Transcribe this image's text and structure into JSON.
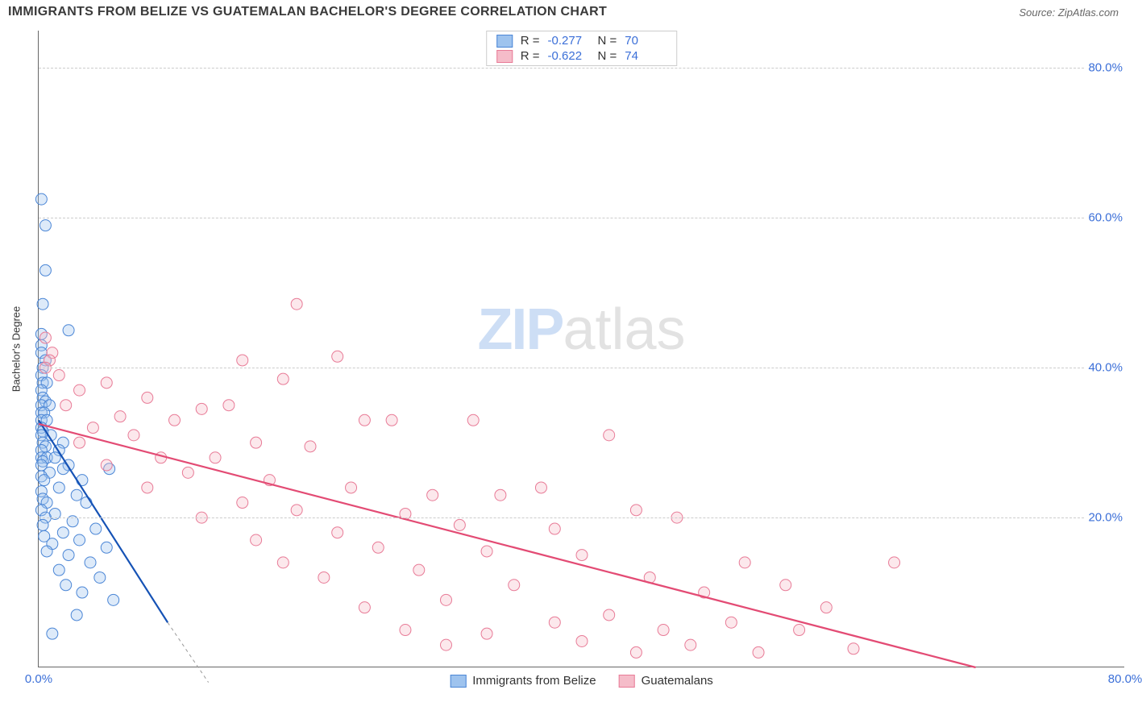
{
  "title": "IMMIGRANTS FROM BELIZE VS GUATEMALAN BACHELOR'S DEGREE CORRELATION CHART",
  "source": "Source: ZipAtlas.com",
  "watermark": {
    "bold": "ZIP",
    "light": "atlas"
  },
  "chart": {
    "type": "scatter",
    "background_color": "#ffffff",
    "grid_color": "#cccccc",
    "axis_color": "#666666",
    "tick_color": "#3b6fd8",
    "tick_fontsize": 15,
    "ylabel": "Bachelor's Degree",
    "label_fontsize": 13,
    "xlim": [
      0,
      80
    ],
    "ylim": [
      0,
      85
    ],
    "yticks": [
      20,
      40,
      60,
      80
    ],
    "ytick_labels": [
      "20.0%",
      "40.0%",
      "60.0%",
      "80.0%"
    ],
    "xticks": [
      0,
      80
    ],
    "xtick_labels": [
      "0.0%",
      "80.0%"
    ],
    "marker_radius": 7,
    "marker_opacity": 0.35,
    "line_width": 2.2
  },
  "series": [
    {
      "name": "Immigrants from Belize",
      "fill_color": "#9ec3ee",
      "stroke_color": "#4b86d6",
      "line_color": "#1552b5",
      "R": "-0.277",
      "N": "70",
      "trend": {
        "x1": 0,
        "y1": 33,
        "x2": 9.5,
        "y2": 6
      },
      "trend_dash": {
        "x1": 9.5,
        "y1": 6,
        "x2": 12.5,
        "y2": -2
      },
      "points": [
        [
          0.2,
          62.5
        ],
        [
          0.5,
          59
        ],
        [
          0.5,
          53
        ],
        [
          0.3,
          48.5
        ],
        [
          2.2,
          45
        ],
        [
          0.2,
          44.5
        ],
        [
          0.2,
          43
        ],
        [
          0.2,
          42
        ],
        [
          0.5,
          41
        ],
        [
          0.3,
          40
        ],
        [
          0.2,
          39
        ],
        [
          0.3,
          38
        ],
        [
          0.6,
          38
        ],
        [
          0.2,
          37
        ],
        [
          0.3,
          36
        ],
        [
          0.5,
          35.5
        ],
        [
          0.2,
          35
        ],
        [
          0.8,
          35
        ],
        [
          0.2,
          34
        ],
        [
          0.4,
          34
        ],
        [
          0.2,
          33
        ],
        [
          0.6,
          33
        ],
        [
          0.2,
          32
        ],
        [
          0.3,
          31.5
        ],
        [
          0.9,
          31
        ],
        [
          0.2,
          31
        ],
        [
          0.3,
          30
        ],
        [
          1.8,
          30
        ],
        [
          0.5,
          29.5
        ],
        [
          1.5,
          29
        ],
        [
          0.2,
          29
        ],
        [
          0.2,
          28
        ],
        [
          0.6,
          28
        ],
        [
          1.2,
          28
        ],
        [
          0.3,
          27.5
        ],
        [
          2.2,
          27
        ],
        [
          0.2,
          27
        ],
        [
          1.8,
          26.5
        ],
        [
          5.2,
          26.5
        ],
        [
          0.8,
          26
        ],
        [
          0.2,
          25.5
        ],
        [
          3.2,
          25
        ],
        [
          0.4,
          25
        ],
        [
          1.5,
          24
        ],
        [
          0.2,
          23.5
        ],
        [
          2.8,
          23
        ],
        [
          0.3,
          22.5
        ],
        [
          0.6,
          22
        ],
        [
          3.5,
          22
        ],
        [
          0.2,
          21
        ],
        [
          1.2,
          20.5
        ],
        [
          0.5,
          20
        ],
        [
          2.5,
          19.5
        ],
        [
          0.3,
          19
        ],
        [
          4.2,
          18.5
        ],
        [
          1.8,
          18
        ],
        [
          0.4,
          17.5
        ],
        [
          3.0,
          17
        ],
        [
          1.0,
          16.5
        ],
        [
          5.0,
          16
        ],
        [
          0.6,
          15.5
        ],
        [
          2.2,
          15
        ],
        [
          3.8,
          14
        ],
        [
          1.5,
          13
        ],
        [
          4.5,
          12
        ],
        [
          2.0,
          11
        ],
        [
          3.2,
          10
        ],
        [
          5.5,
          9
        ],
        [
          2.8,
          7
        ],
        [
          1.0,
          4.5
        ]
      ]
    },
    {
      "name": "Guatemalans",
      "fill_color": "#f5bcc9",
      "stroke_color": "#e87b97",
      "line_color": "#e34b74",
      "R": "-0.622",
      "N": "74",
      "trend": {
        "x1": 0,
        "y1": 32.5,
        "x2": 69,
        "y2": 0
      },
      "points": [
        [
          0.5,
          44
        ],
        [
          1.0,
          42
        ],
        [
          0.8,
          41
        ],
        [
          0.5,
          40
        ],
        [
          1.5,
          39
        ],
        [
          19,
          48.5
        ],
        [
          5,
          38
        ],
        [
          3,
          37
        ],
        [
          8,
          36
        ],
        [
          2,
          35
        ],
        [
          15,
          41
        ],
        [
          22,
          41.5
        ],
        [
          12,
          34.5
        ],
        [
          6,
          33.5
        ],
        [
          18,
          38.5
        ],
        [
          14,
          35
        ],
        [
          4,
          32
        ],
        [
          10,
          33
        ],
        [
          7,
          31
        ],
        [
          24,
          33
        ],
        [
          16,
          30
        ],
        [
          20,
          29.5
        ],
        [
          3,
          30
        ],
        [
          32,
          33
        ],
        [
          9,
          28
        ],
        [
          13,
          28
        ],
        [
          5,
          27
        ],
        [
          26,
          33
        ],
        [
          42,
          31
        ],
        [
          11,
          26
        ],
        [
          17,
          25
        ],
        [
          23,
          24
        ],
        [
          29,
          23
        ],
        [
          8,
          24
        ],
        [
          37,
          24
        ],
        [
          15,
          22
        ],
        [
          34,
          23
        ],
        [
          19,
          21
        ],
        [
          27,
          20.5
        ],
        [
          44,
          21
        ],
        [
          12,
          20
        ],
        [
          31,
          19
        ],
        [
          38,
          18.5
        ],
        [
          22,
          18
        ],
        [
          47,
          20
        ],
        [
          16,
          17
        ],
        [
          25,
          16
        ],
        [
          33,
          15.5
        ],
        [
          40,
          15
        ],
        [
          52,
          14
        ],
        [
          18,
          14
        ],
        [
          28,
          13
        ],
        [
          45,
          12
        ],
        [
          21,
          12
        ],
        [
          35,
          11
        ],
        [
          55,
          11
        ],
        [
          49,
          10
        ],
        [
          30,
          9
        ],
        [
          58,
          8
        ],
        [
          24,
          8
        ],
        [
          42,
          7
        ],
        [
          63,
          14
        ],
        [
          38,
          6
        ],
        [
          51,
          6
        ],
        [
          46,
          5
        ],
        [
          27,
          5
        ],
        [
          56,
          5
        ],
        [
          33,
          4.5
        ],
        [
          48,
          3
        ],
        [
          40,
          3.5
        ],
        [
          30,
          3
        ],
        [
          60,
          2.5
        ],
        [
          53,
          2
        ],
        [
          44,
          2
        ]
      ]
    }
  ],
  "legend_top": {
    "r_label": "R =",
    "n_label": "N ="
  },
  "legend_bottom_labels": [
    "Immigrants from Belize",
    "Guatemalans"
  ]
}
